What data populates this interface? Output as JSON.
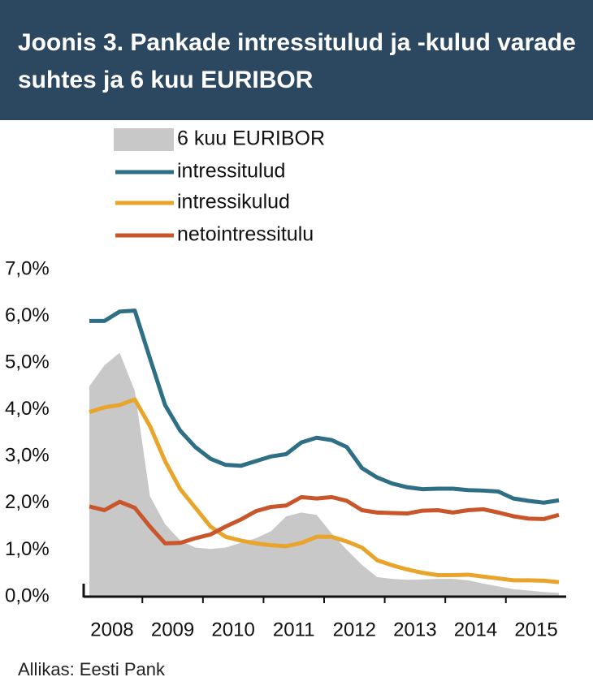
{
  "chart_data": {
    "type": "line",
    "title": "Joonis 3. Pankade intressitulud ja -kulud varade suhtes ja 6 kuu EURIBOR",
    "source": "Allikas: Eesti Pank",
    "categories": [
      "2008",
      null,
      null,
      null,
      "2009",
      null,
      null,
      null,
      "2010",
      null,
      null,
      null,
      "2011",
      null,
      null,
      null,
      "2012",
      null,
      null,
      null,
      "2013",
      null,
      null,
      null,
      "2014",
      null,
      null,
      null,
      "2015",
      null,
      null,
      null
    ],
    "ylim": [
      0,
      7
    ],
    "yticks": [
      {
        "value": 0,
        "label": "0,0%"
      },
      {
        "value": 1,
        "label": "1,0%"
      },
      {
        "value": 2,
        "label": "2,0%"
      },
      {
        "value": 3,
        "label": "3,0%"
      },
      {
        "value": 4,
        "label": "4,0%"
      },
      {
        "value": 5,
        "label": "5,0%"
      },
      {
        "value": 6,
        "label": "6,0%"
      },
      {
        "value": 7,
        "label": "7,0%"
      }
    ],
    "series": [
      {
        "name": "6 kuu EURIBOR",
        "kind": "area",
        "color": "#c8c8c8",
        "values": [
          4.5,
          4.95,
          5.22,
          4.4,
          2.15,
          1.55,
          1.2,
          1.05,
          1.02,
          1.05,
          1.15,
          1.25,
          1.4,
          1.72,
          1.8,
          1.75,
          1.35,
          1.0,
          0.68,
          0.42,
          0.38,
          0.36,
          0.37,
          0.38,
          0.38,
          0.35,
          0.28,
          0.22,
          0.16,
          0.13,
          0.1,
          0.08
        ]
      },
      {
        "name": "intressitulud",
        "kind": "line",
        "color": "#2f6f85",
        "values": [
          5.9,
          5.9,
          6.1,
          6.12,
          5.1,
          4.1,
          3.55,
          3.2,
          2.95,
          2.82,
          2.8,
          2.9,
          3.0,
          3.05,
          3.3,
          3.4,
          3.35,
          3.2,
          2.75,
          2.55,
          2.42,
          2.34,
          2.3,
          2.31,
          2.31,
          2.28,
          2.27,
          2.25,
          2.1,
          2.05,
          2.01,
          2.06
        ]
      },
      {
        "name": "intressikulud",
        "kind": "line",
        "color": "#e9a42c",
        "values": [
          3.95,
          4.05,
          4.1,
          4.22,
          3.65,
          2.9,
          2.3,
          1.9,
          1.5,
          1.28,
          1.2,
          1.14,
          1.1,
          1.08,
          1.15,
          1.28,
          1.28,
          1.18,
          1.05,
          0.78,
          0.67,
          0.58,
          0.51,
          0.46,
          0.46,
          0.47,
          0.43,
          0.39,
          0.35,
          0.35,
          0.34,
          0.31
        ]
      },
      {
        "name": "netointressitulu",
        "kind": "line",
        "color": "#c8562a",
        "values": [
          1.93,
          1.85,
          2.03,
          1.9,
          1.5,
          1.14,
          1.15,
          1.25,
          1.33,
          1.5,
          1.65,
          1.83,
          1.92,
          1.95,
          2.13,
          2.1,
          2.13,
          2.05,
          1.85,
          1.8,
          1.79,
          1.78,
          1.84,
          1.85,
          1.8,
          1.85,
          1.87,
          1.8,
          1.72,
          1.67,
          1.66,
          1.75
        ]
      }
    ]
  }
}
